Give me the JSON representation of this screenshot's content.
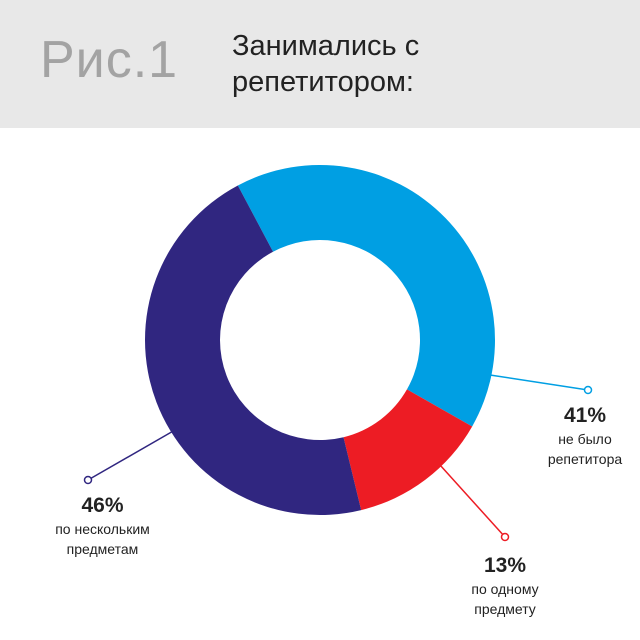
{
  "chart_data": {
    "type": "donut",
    "figure_label": "Рис.1",
    "title": "Занимались с репетитором:",
    "categories": [
      "не было репетитора",
      "по одному предмету",
      "по нескольким предметам"
    ],
    "values": [
      41,
      13,
      46
    ],
    "value_labels": [
      "41%",
      "13%",
      "46%"
    ],
    "colors": [
      "#009fe3",
      "#ed1c24",
      "#302680"
    ]
  }
}
